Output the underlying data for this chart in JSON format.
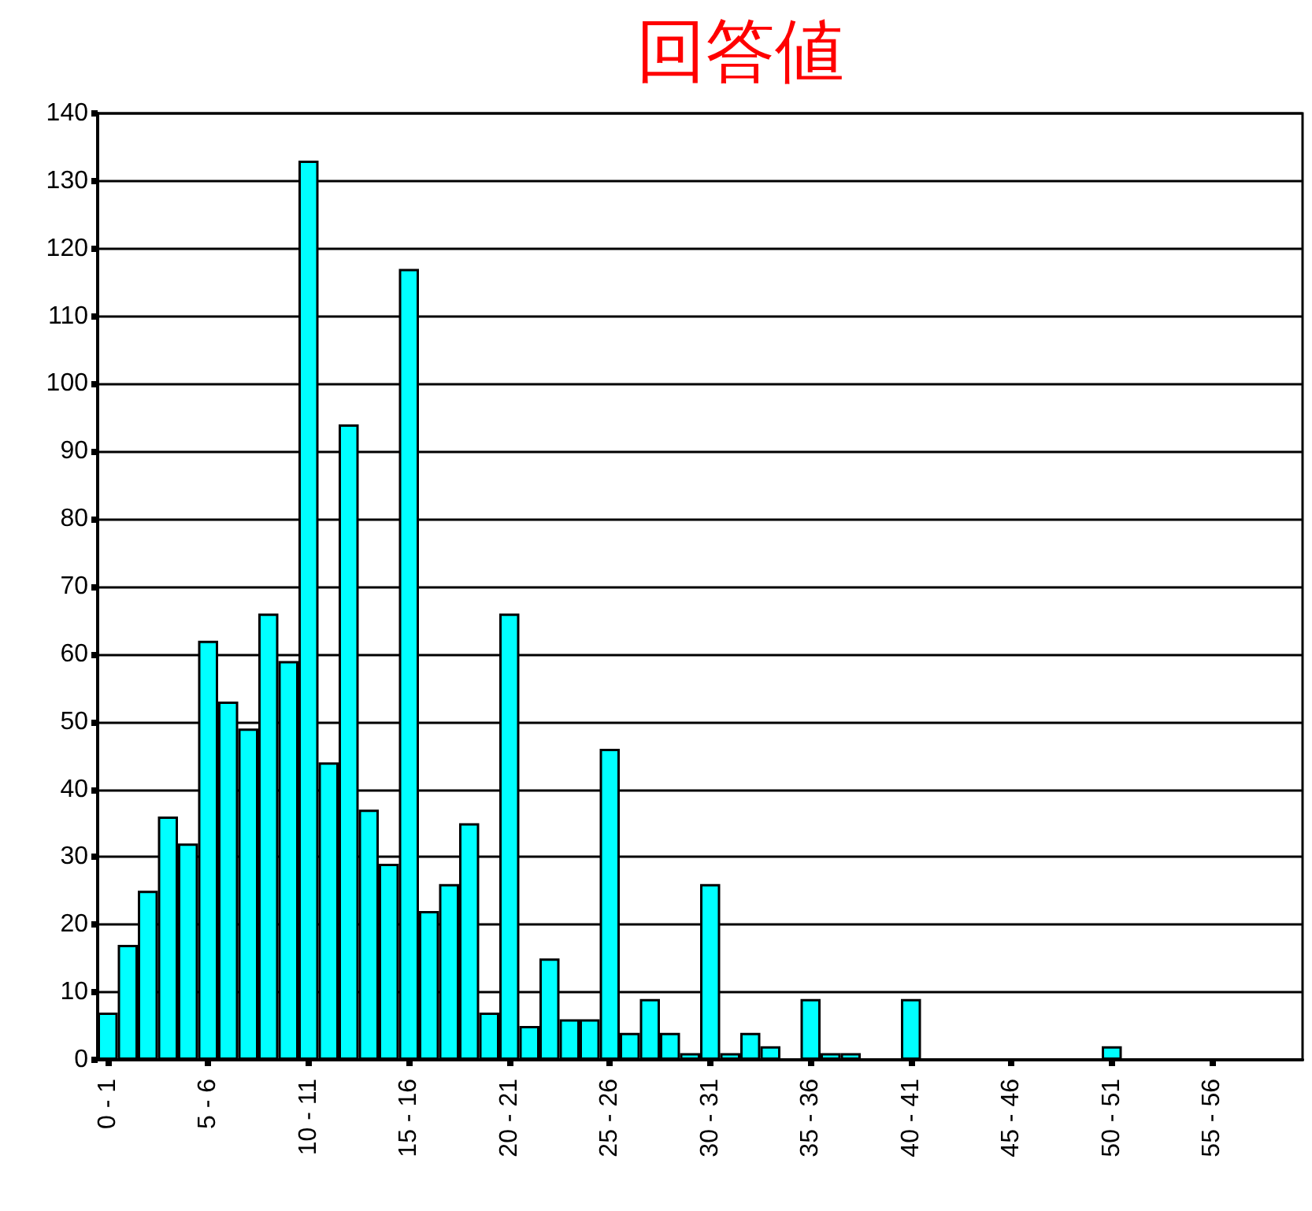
{
  "chart_data": {
    "type": "bar",
    "title": "回答値",
    "categories": [
      "0 - 1",
      null,
      null,
      null,
      null,
      "5 - 6",
      null,
      null,
      null,
      null,
      "10 - 11",
      null,
      null,
      null,
      null,
      "15 - 16",
      null,
      null,
      null,
      null,
      "20 - 21",
      null,
      null,
      null,
      null,
      "25 - 26",
      null,
      null,
      null,
      null,
      "30 - 31",
      null,
      null,
      null,
      null,
      "35 - 36",
      null,
      null,
      null,
      null,
      "40 - 41",
      null,
      null,
      null,
      null,
      "45 - 46",
      null,
      null,
      null,
      null,
      "50 - 51",
      null,
      null,
      null,
      null,
      "55 - 56",
      null,
      null,
      null,
      null
    ],
    "values": [
      7,
      17,
      25,
      36,
      32,
      62,
      53,
      49,
      66,
      59,
      133,
      44,
      94,
      37,
      29,
      117,
      22,
      26,
      35,
      7,
      66,
      5,
      15,
      6,
      6,
      46,
      4,
      9,
      4,
      1,
      26,
      1,
      4,
      2,
      0,
      9,
      1,
      1,
      0,
      0,
      9,
      0,
      0,
      0,
      0,
      0,
      0,
      0,
      0,
      0,
      2,
      0,
      0,
      0,
      0,
      0,
      0,
      0,
      0,
      0
    ],
    "color": "#00ffff",
    "ylim": [
      0,
      140
    ],
    "yticks": [
      0,
      10,
      20,
      30,
      40,
      50,
      60,
      70,
      80,
      90,
      100,
      110,
      120,
      130,
      140
    ],
    "grid": "y"
  }
}
